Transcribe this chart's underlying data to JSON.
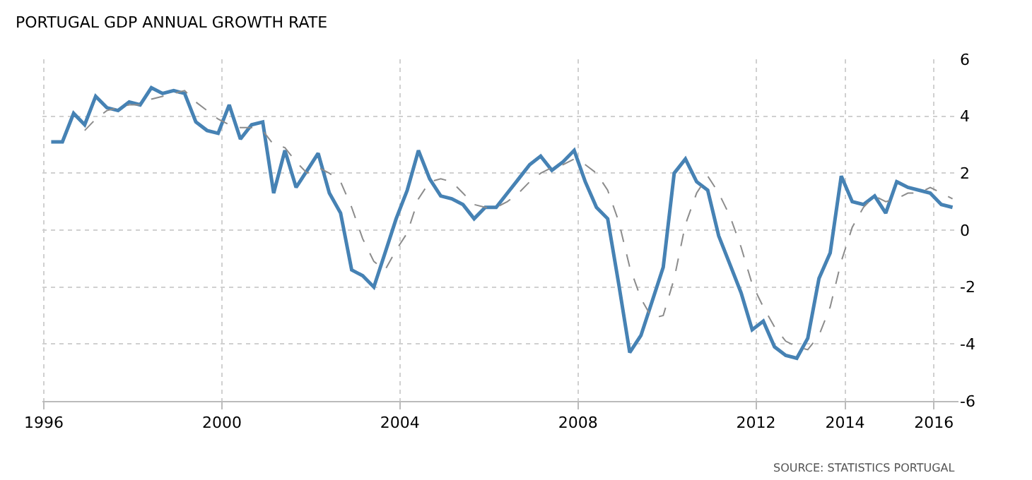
{
  "chart_data": {
    "type": "line",
    "title": "PORTUGAL GDP ANNUAL GROWTH RATE",
    "x": [
      "1996-03",
      "1996-06",
      "1996-09",
      "1996-12",
      "1997-03",
      "1997-06",
      "1997-09",
      "1997-12",
      "1998-03",
      "1998-06",
      "1998-09",
      "1998-12",
      "1999-03",
      "1999-06",
      "1999-09",
      "1999-12",
      "2000-03",
      "2000-06",
      "2000-09",
      "2000-12",
      "2001-03",
      "2001-06",
      "2001-09",
      "2001-12",
      "2002-03",
      "2002-06",
      "2002-09",
      "2002-12",
      "2003-03",
      "2003-06",
      "2003-09",
      "2003-12",
      "2004-03",
      "2004-06",
      "2004-09",
      "2004-12",
      "2005-03",
      "2005-06",
      "2005-09",
      "2005-12",
      "2006-03",
      "2006-06",
      "2006-09",
      "2006-12",
      "2007-03",
      "2007-06",
      "2007-09",
      "2007-12",
      "2008-03",
      "2008-06",
      "2008-09",
      "2008-12",
      "2009-03",
      "2009-06",
      "2009-09",
      "2009-12",
      "2010-03",
      "2010-06",
      "2010-09",
      "2010-12",
      "2011-03",
      "2011-06",
      "2011-09",
      "2011-12",
      "2012-03",
      "2012-06",
      "2012-09",
      "2012-12",
      "2013-03",
      "2013-06",
      "2013-09",
      "2013-12",
      "2014-03",
      "2014-06",
      "2014-09",
      "2014-12",
      "2015-03",
      "2015-06",
      "2015-09",
      "2015-12",
      "2016-03",
      "2016-06"
    ],
    "series": [
      {
        "color": "#4682b4",
        "line_style": "solid",
        "values": [
          3.1,
          3.1,
          4.1,
          3.7,
          4.7,
          4.3,
          4.2,
          4.5,
          4.4,
          5.0,
          4.8,
          4.9,
          4.8,
          3.8,
          3.5,
          3.4,
          4.4,
          3.2,
          3.7,
          3.8,
          1.3,
          2.8,
          1.5,
          2.1,
          2.7,
          1.3,
          0.6,
          -1.4,
          -1.6,
          -2.0,
          -0.8,
          0.4,
          1.4,
          2.8,
          1.8,
          1.2,
          1.1,
          0.9,
          0.4,
          0.8,
          0.8,
          1.3,
          1.8,
          2.3,
          2.6,
          2.1,
          2.4,
          2.8,
          1.7,
          0.8,
          0.4,
          -1.9,
          -4.3,
          -3.7,
          -2.5,
          -1.3,
          2.0,
          2.5,
          1.7,
          1.4,
          -0.2,
          -1.2,
          -2.2,
          -3.5,
          -3.2,
          -4.1,
          -4.4,
          -4.5,
          -3.8,
          -1.7,
          -0.8,
          1.9,
          1.0,
          0.9,
          1.2,
          0.6,
          1.7,
          1.5,
          1.4,
          1.3,
          0.9,
          0.8
        ]
      },
      {
        "color": "#8c8c8c",
        "line_style": "dashed",
        "values": [
          null,
          null,
          null,
          3.5,
          3.9,
          4.2,
          4.3,
          4.4,
          4.4,
          4.6,
          4.7,
          4.8,
          4.9,
          4.5,
          4.2,
          3.9,
          3.7,
          3.6,
          3.6,
          3.5,
          3.0,
          2.9,
          2.4,
          2.0,
          2.2,
          2.0,
          1.7,
          0.8,
          -0.3,
          -1.1,
          -1.4,
          -0.7,
          -0.1,
          1.1,
          1.7,
          1.8,
          1.7,
          1.3,
          0.9,
          0.8,
          0.8,
          1.0,
          1.3,
          1.7,
          2.0,
          2.2,
          2.3,
          2.5,
          2.3,
          2.0,
          1.4,
          0.3,
          -1.3,
          -2.4,
          -3.1,
          -3.0,
          -1.7,
          0.2,
          1.3,
          1.9,
          1.3,
          0.5,
          -0.6,
          -1.9,
          -2.7,
          -3.4,
          -3.9,
          -4.1,
          -4.2,
          -3.7,
          -2.7,
          -1.1,
          0.1,
          0.8,
          1.2,
          1.0,
          1.1,
          1.3,
          1.3,
          1.5,
          1.3,
          1.1
        ]
      }
    ],
    "xlim": [
      "1995-12-20",
      "2016-07-20"
    ],
    "xticks": [
      "1996",
      "2000",
      "2004",
      "2008",
      "2012",
      "2014",
      "2016"
    ],
    "ylim": [
      -6,
      6
    ],
    "yticks": [
      -6,
      -4,
      -2,
      0,
      2,
      4,
      6
    ],
    "grid": true,
    "annotations": [
      "SOURCE: STATISTICS PORTUGAL"
    ]
  }
}
